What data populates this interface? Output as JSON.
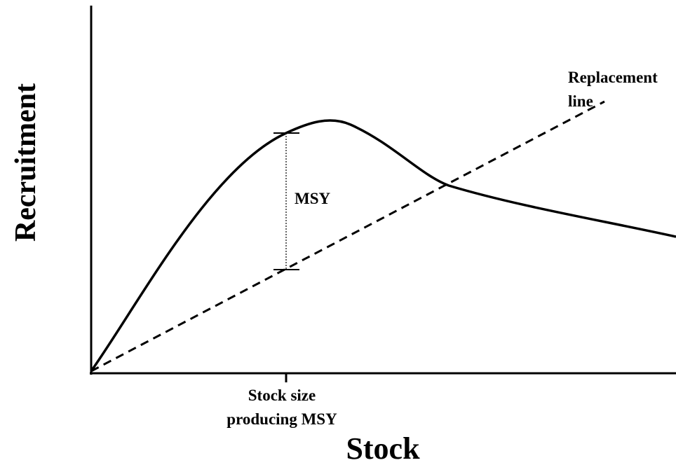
{
  "axes": {
    "x_label": "Stock",
    "y_label": "Recruitment"
  },
  "annotations": {
    "replacement_line": [
      "Replacement",
      "line"
    ],
    "msy": "MSY",
    "stock_size": [
      "Stock size",
      "producing MSY"
    ]
  }
}
